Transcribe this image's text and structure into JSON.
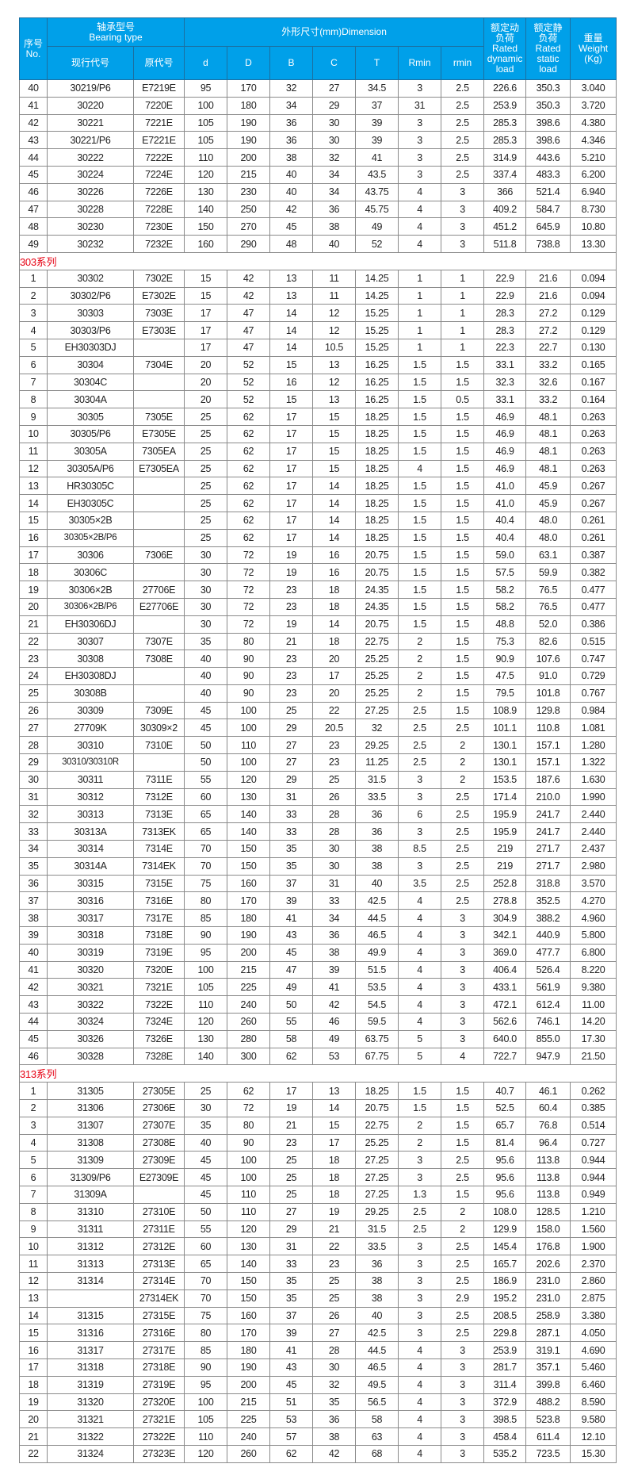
{
  "header": {
    "no": "序号\nNo.",
    "bearing_type": "轴承型号\nBearing type",
    "dimension": "外形尺寸(mm)Dimension",
    "dynamic": "额定动\n负荷\nRated\ndynamic\nload",
    "static": "额定静\n负荷\nRated\nstatic\nload",
    "weight": "重量\nWeight\n(Kg)",
    "current_code": "现行代号",
    "original_code": "原代号",
    "d": "d",
    "D": "D",
    "B": "B",
    "C": "C",
    "T": "T",
    "Rmin": "Rmin",
    "rmin": "rmin"
  },
  "colors": {
    "header_bg": "#00a0e9",
    "section_text": "#e60012"
  },
  "sections": [
    {
      "title": "",
      "rows": [
        [
          "40",
          "30219/P6",
          "E7219E",
          "95",
          "170",
          "32",
          "27",
          "34.5",
          "3",
          "2.5",
          "226.6",
          "350.3",
          "3.040"
        ],
        [
          "41",
          "30220",
          "7220E",
          "100",
          "180",
          "34",
          "29",
          "37",
          "31",
          "2.5",
          "253.9",
          "350.3",
          "3.720"
        ],
        [
          "42",
          "30221",
          "7221E",
          "105",
          "190",
          "36",
          "30",
          "39",
          "3",
          "2.5",
          "285.3",
          "398.6",
          "4.380"
        ],
        [
          "43",
          "30221/P6",
          "E7221E",
          "105",
          "190",
          "36",
          "30",
          "39",
          "3",
          "2.5",
          "285.3",
          "398.6",
          "4.346"
        ],
        [
          "44",
          "30222",
          "7222E",
          "110",
          "200",
          "38",
          "32",
          "41",
          "3",
          "2.5",
          "314.9",
          "443.6",
          "5.210"
        ],
        [
          "45",
          "30224",
          "7224E",
          "120",
          "215",
          "40",
          "34",
          "43.5",
          "3",
          "2.5",
          "337.4",
          "483.3",
          "6.200"
        ],
        [
          "46",
          "30226",
          "7226E",
          "130",
          "230",
          "40",
          "34",
          "43.75",
          "4",
          "3",
          "366",
          "521.4",
          "6.940"
        ],
        [
          "47",
          "30228",
          "7228E",
          "140",
          "250",
          "42",
          "36",
          "45.75",
          "4",
          "3",
          "409.2",
          "584.7",
          "8.730"
        ],
        [
          "48",
          "30230",
          "7230E",
          "150",
          "270",
          "45",
          "38",
          "49",
          "4",
          "3",
          "451.2",
          "645.9",
          "10.80"
        ],
        [
          "49",
          "30232",
          "7232E",
          "160",
          "290",
          "48",
          "40",
          "52",
          "4",
          "3",
          "511.8",
          "738.8",
          "13.30"
        ]
      ]
    },
    {
      "title": "303系列",
      "rows": [
        [
          "1",
          "30302",
          "7302E",
          "15",
          "42",
          "13",
          "11",
          "14.25",
          "1",
          "1",
          "22.9",
          "21.6",
          "0.094"
        ],
        [
          "2",
          "30302/P6",
          "E7302E",
          "15",
          "42",
          "13",
          "11",
          "14.25",
          "1",
          "1",
          "22.9",
          "21.6",
          "0.094"
        ],
        [
          "3",
          "30303",
          "7303E",
          "17",
          "47",
          "14",
          "12",
          "15.25",
          "1",
          "1",
          "28.3",
          "27.2",
          "0.129"
        ],
        [
          "4",
          "30303/P6",
          "E7303E",
          "17",
          "47",
          "14",
          "12",
          "15.25",
          "1",
          "1",
          "28.3",
          "27.2",
          "0.129"
        ],
        [
          "5",
          "EH30303DJ",
          "",
          "17",
          "47",
          "14",
          "10.5",
          "15.25",
          "1",
          "1",
          "22.3",
          "22.7",
          "0.130"
        ],
        [
          "6",
          "30304",
          "7304E",
          "20",
          "52",
          "15",
          "13",
          "16.25",
          "1.5",
          "1.5",
          "33.1",
          "33.2",
          "0.165"
        ],
        [
          "7",
          "30304C",
          "",
          "20",
          "52",
          "16",
          "12",
          "16.25",
          "1.5",
          "1.5",
          "32.3",
          "32.6",
          "0.167"
        ],
        [
          "8",
          "30304A",
          "",
          "20",
          "52",
          "15",
          "13",
          "16.25",
          "1.5",
          "0.5",
          "33.1",
          "33.2",
          "0.164"
        ],
        [
          "9",
          "30305",
          "7305E",
          "25",
          "62",
          "17",
          "15",
          "18.25",
          "1.5",
          "1.5",
          "46.9",
          "48.1",
          "0.263"
        ],
        [
          "10",
          "30305/P6",
          "E7305E",
          "25",
          "62",
          "17",
          "15",
          "18.25",
          "1.5",
          "1.5",
          "46.9",
          "48.1",
          "0.263"
        ],
        [
          "11",
          "30305A",
          "7305EA",
          "25",
          "62",
          "17",
          "15",
          "18.25",
          "1.5",
          "1.5",
          "46.9",
          "48.1",
          "0.263"
        ],
        [
          "12",
          "30305A/P6",
          "E7305EA",
          "25",
          "62",
          "17",
          "15",
          "18.25",
          "4",
          "1.5",
          "46.9",
          "48.1",
          "0.263"
        ],
        [
          "13",
          "HR30305C",
          "",
          "25",
          "62",
          "17",
          "14",
          "18.25",
          "1.5",
          "1.5",
          "41.0",
          "45.9",
          "0.267"
        ],
        [
          "14",
          "EH30305C",
          "",
          "25",
          "62",
          "17",
          "14",
          "18.25",
          "1.5",
          "1.5",
          "41.0",
          "45.9",
          "0.267"
        ],
        [
          "15",
          "30305×2B",
          "",
          "25",
          "62",
          "17",
          "14",
          "18.25",
          "1.5",
          "1.5",
          "40.4",
          "48.0",
          "0.261"
        ],
        [
          "16",
          "30305×2B/P6",
          "",
          "25",
          "62",
          "17",
          "14",
          "18.25",
          "1.5",
          "1.5",
          "40.4",
          "48.0",
          "0.261"
        ],
        [
          "17",
          "30306",
          "7306E",
          "30",
          "72",
          "19",
          "16",
          "20.75",
          "1.5",
          "1.5",
          "59.0",
          "63.1",
          "0.387"
        ],
        [
          "18",
          "30306C",
          "",
          "30",
          "72",
          "19",
          "16",
          "20.75",
          "1.5",
          "1.5",
          "57.5",
          "59.9",
          "0.382"
        ],
        [
          "19",
          "30306×2B",
          "27706E",
          "30",
          "72",
          "23",
          "18",
          "24.35",
          "1.5",
          "1.5",
          "58.2",
          "76.5",
          "0.477"
        ],
        [
          "20",
          "30306×2B/P6",
          "E27706E",
          "30",
          "72",
          "23",
          "18",
          "24.35",
          "1.5",
          "1.5",
          "58.2",
          "76.5",
          "0.477"
        ],
        [
          "21",
          "EH30306DJ",
          "",
          "30",
          "72",
          "19",
          "14",
          "20.75",
          "1.5",
          "1.5",
          "48.8",
          "52.0",
          "0.386"
        ],
        [
          "22",
          "30307",
          "7307E",
          "35",
          "80",
          "21",
          "18",
          "22.75",
          "2",
          "1.5",
          "75.3",
          "82.6",
          "0.515"
        ],
        [
          "23",
          "30308",
          "7308E",
          "40",
          "90",
          "23",
          "20",
          "25.25",
          "2",
          "1.5",
          "90.9",
          "107.6",
          "0.747"
        ],
        [
          "24",
          "EH30308DJ",
          "",
          "40",
          "90",
          "23",
          "17",
          "25.25",
          "2",
          "1.5",
          "47.5",
          "91.0",
          "0.729"
        ],
        [
          "25",
          "30308B",
          "",
          "40",
          "90",
          "23",
          "20",
          "25.25",
          "2",
          "1.5",
          "79.5",
          "101.8",
          "0.767"
        ],
        [
          "26",
          "30309",
          "7309E",
          "45",
          "100",
          "25",
          "22",
          "27.25",
          "2.5",
          "1.5",
          "108.9",
          "129.8",
          "0.984"
        ],
        [
          "27",
          "27709K",
          "30309×2",
          "45",
          "100",
          "29",
          "20.5",
          "32",
          "2.5",
          "2.5",
          "101.1",
          "110.8",
          "1.081"
        ],
        [
          "28",
          "30310",
          "7310E",
          "50",
          "110",
          "27",
          "23",
          "29.25",
          "2.5",
          "2",
          "130.1",
          "157.1",
          "1.280"
        ],
        [
          "29",
          "30310/30310R",
          "",
          "50",
          "100",
          "27",
          "23",
          "11.25",
          "2.5",
          "2",
          "130.1",
          "157.1",
          "1.322"
        ],
        [
          "30",
          "30311",
          "7311E",
          "55",
          "120",
          "29",
          "25",
          "31.5",
          "3",
          "2",
          "153.5",
          "187.6",
          "1.630"
        ],
        [
          "31",
          "30312",
          "7312E",
          "60",
          "130",
          "31",
          "26",
          "33.5",
          "3",
          "2.5",
          "171.4",
          "210.0",
          "1.990"
        ],
        [
          "32",
          "30313",
          "7313E",
          "65",
          "140",
          "33",
          "28",
          "36",
          "6",
          "2.5",
          "195.9",
          "241.7",
          "2.440"
        ],
        [
          "33",
          "30313A",
          "7313EK",
          "65",
          "140",
          "33",
          "28",
          "36",
          "3",
          "2.5",
          "195.9",
          "241.7",
          "2.440"
        ],
        [
          "34",
          "30314",
          "7314E",
          "70",
          "150",
          "35",
          "30",
          "38",
          "8.5",
          "2.5",
          "219",
          "271.7",
          "2.437"
        ],
        [
          "35",
          "30314A",
          "7314EK",
          "70",
          "150",
          "35",
          "30",
          "38",
          "3",
          "2.5",
          "219",
          "271.7",
          "2.980"
        ],
        [
          "36",
          "30315",
          "7315E",
          "75",
          "160",
          "37",
          "31",
          "40",
          "3.5",
          "2.5",
          "252.8",
          "318.8",
          "3.570"
        ],
        [
          "37",
          "30316",
          "7316E",
          "80",
          "170",
          "39",
          "33",
          "42.5",
          "4",
          "2.5",
          "278.8",
          "352.5",
          "4.270"
        ],
        [
          "38",
          "30317",
          "7317E",
          "85",
          "180",
          "41",
          "34",
          "44.5",
          "4",
          "3",
          "304.9",
          "388.2",
          "4.960"
        ],
        [
          "39",
          "30318",
          "7318E",
          "90",
          "190",
          "43",
          "36",
          "46.5",
          "4",
          "3",
          "342.1",
          "440.9",
          "5.800"
        ],
        [
          "40",
          "30319",
          "7319E",
          "95",
          "200",
          "45",
          "38",
          "49.9",
          "4",
          "3",
          "369.0",
          "477.7",
          "6.800"
        ],
        [
          "41",
          "30320",
          "7320E",
          "100",
          "215",
          "47",
          "39",
          "51.5",
          "4",
          "3",
          "406.4",
          "526.4",
          "8.220"
        ],
        [
          "42",
          "30321",
          "7321E",
          "105",
          "225",
          "49",
          "41",
          "53.5",
          "4",
          "3",
          "433.1",
          "561.9",
          "9.380"
        ],
        [
          "43",
          "30322",
          "7322E",
          "110",
          "240",
          "50",
          "42",
          "54.5",
          "4",
          "3",
          "472.1",
          "612.4",
          "11.00"
        ],
        [
          "44",
          "30324",
          "7324E",
          "120",
          "260",
          "55",
          "46",
          "59.5",
          "4",
          "3",
          "562.6",
          "746.1",
          "14.20"
        ],
        [
          "45",
          "30326",
          "7326E",
          "130",
          "280",
          "58",
          "49",
          "63.75",
          "5",
          "3",
          "640.0",
          "855.0",
          "17.30"
        ],
        [
          "46",
          "30328",
          "7328E",
          "140",
          "300",
          "62",
          "53",
          "67.75",
          "5",
          "4",
          "722.7",
          "947.9",
          "21.50"
        ]
      ]
    },
    {
      "title": "313系列",
      "rows": [
        [
          "1",
          "31305",
          "27305E",
          "25",
          "62",
          "17",
          "13",
          "18.25",
          "1.5",
          "1.5",
          "40.7",
          "46.1",
          "0.262"
        ],
        [
          "2",
          "31306",
          "27306E",
          "30",
          "72",
          "19",
          "14",
          "20.75",
          "1.5",
          "1.5",
          "52.5",
          "60.4",
          "0.385"
        ],
        [
          "3",
          "31307",
          "27307E",
          "35",
          "80",
          "21",
          "15",
          "22.75",
          "2",
          "1.5",
          "65.7",
          "76.8",
          "0.514"
        ],
        [
          "4",
          "31308",
          "27308E",
          "40",
          "90",
          "23",
          "17",
          "25.25",
          "2",
          "1.5",
          "81.4",
          "96.4",
          "0.727"
        ],
        [
          "5",
          "31309",
          "27309E",
          "45",
          "100",
          "25",
          "18",
          "27.25",
          "3",
          "2.5",
          "95.6",
          "113.8",
          "0.944"
        ],
        [
          "6",
          "31309/P6",
          "E27309E",
          "45",
          "100",
          "25",
          "18",
          "27.25",
          "3",
          "2.5",
          "95.6",
          "113.8",
          "0.944"
        ],
        [
          "7",
          "31309A",
          "",
          "45",
          "110",
          "25",
          "18",
          "27.25",
          "1.3",
          "1.5",
          "95.6",
          "113.8",
          "0.949"
        ],
        [
          "8",
          "31310",
          "27310E",
          "50",
          "110",
          "27",
          "19",
          "29.25",
          "2.5",
          "2",
          "108.0",
          "128.5",
          "1.210"
        ],
        [
          "9",
          "31311",
          "27311E",
          "55",
          "120",
          "29",
          "21",
          "31.5",
          "2.5",
          "2",
          "129.9",
          "158.0",
          "1.560"
        ],
        [
          "10",
          "31312",
          "27312E",
          "60",
          "130",
          "31",
          "22",
          "33.5",
          "3",
          "2.5",
          "145.4",
          "176.8",
          "1.900"
        ],
        [
          "11",
          "31313",
          "27313E",
          "65",
          "140",
          "33",
          "23",
          "36",
          "3",
          "2.5",
          "165.7",
          "202.6",
          "2.370"
        ],
        [
          "12",
          "31314",
          "27314E",
          "70",
          "150",
          "35",
          "25",
          "38",
          "3",
          "2.5",
          "186.9",
          "231.0",
          "2.860"
        ],
        [
          "13",
          "",
          "27314EK",
          "70",
          "150",
          "35",
          "25",
          "38",
          "3",
          "2.9",
          "195.2",
          "231.0",
          "2.875"
        ],
        [
          "14",
          "31315",
          "27315E",
          "75",
          "160",
          "37",
          "26",
          "40",
          "3",
          "2.5",
          "208.5",
          "258.9",
          "3.380"
        ],
        [
          "15",
          "31316",
          "27316E",
          "80",
          "170",
          "39",
          "27",
          "42.5",
          "3",
          "2.5",
          "229.8",
          "287.1",
          "4.050"
        ],
        [
          "16",
          "31317",
          "27317E",
          "85",
          "180",
          "41",
          "28",
          "44.5",
          "4",
          "3",
          "253.9",
          "319.1",
          "4.690"
        ],
        [
          "17",
          "31318",
          "27318E",
          "90",
          "190",
          "43",
          "30",
          "46.5",
          "4",
          "3",
          "281.7",
          "357.1",
          "5.460"
        ],
        [
          "18",
          "31319",
          "27319E",
          "95",
          "200",
          "45",
          "32",
          "49.5",
          "4",
          "3",
          "311.4",
          "399.8",
          "6.460"
        ],
        [
          "19",
          "31320",
          "27320E",
          "100",
          "215",
          "51",
          "35",
          "56.5",
          "4",
          "3",
          "372.9",
          "488.2",
          "8.590"
        ],
        [
          "20",
          "31321",
          "27321E",
          "105",
          "225",
          "53",
          "36",
          "58",
          "4",
          "3",
          "398.5",
          "523.8",
          "9.580"
        ],
        [
          "21",
          "31322",
          "27322E",
          "110",
          "240",
          "57",
          "38",
          "63",
          "4",
          "3",
          "458.4",
          "611.4",
          "12.10"
        ],
        [
          "22",
          "31324",
          "27323E",
          "120",
          "260",
          "62",
          "42",
          "68",
          "4",
          "3",
          "535.2",
          "723.5",
          "15.30"
        ]
      ]
    }
  ]
}
